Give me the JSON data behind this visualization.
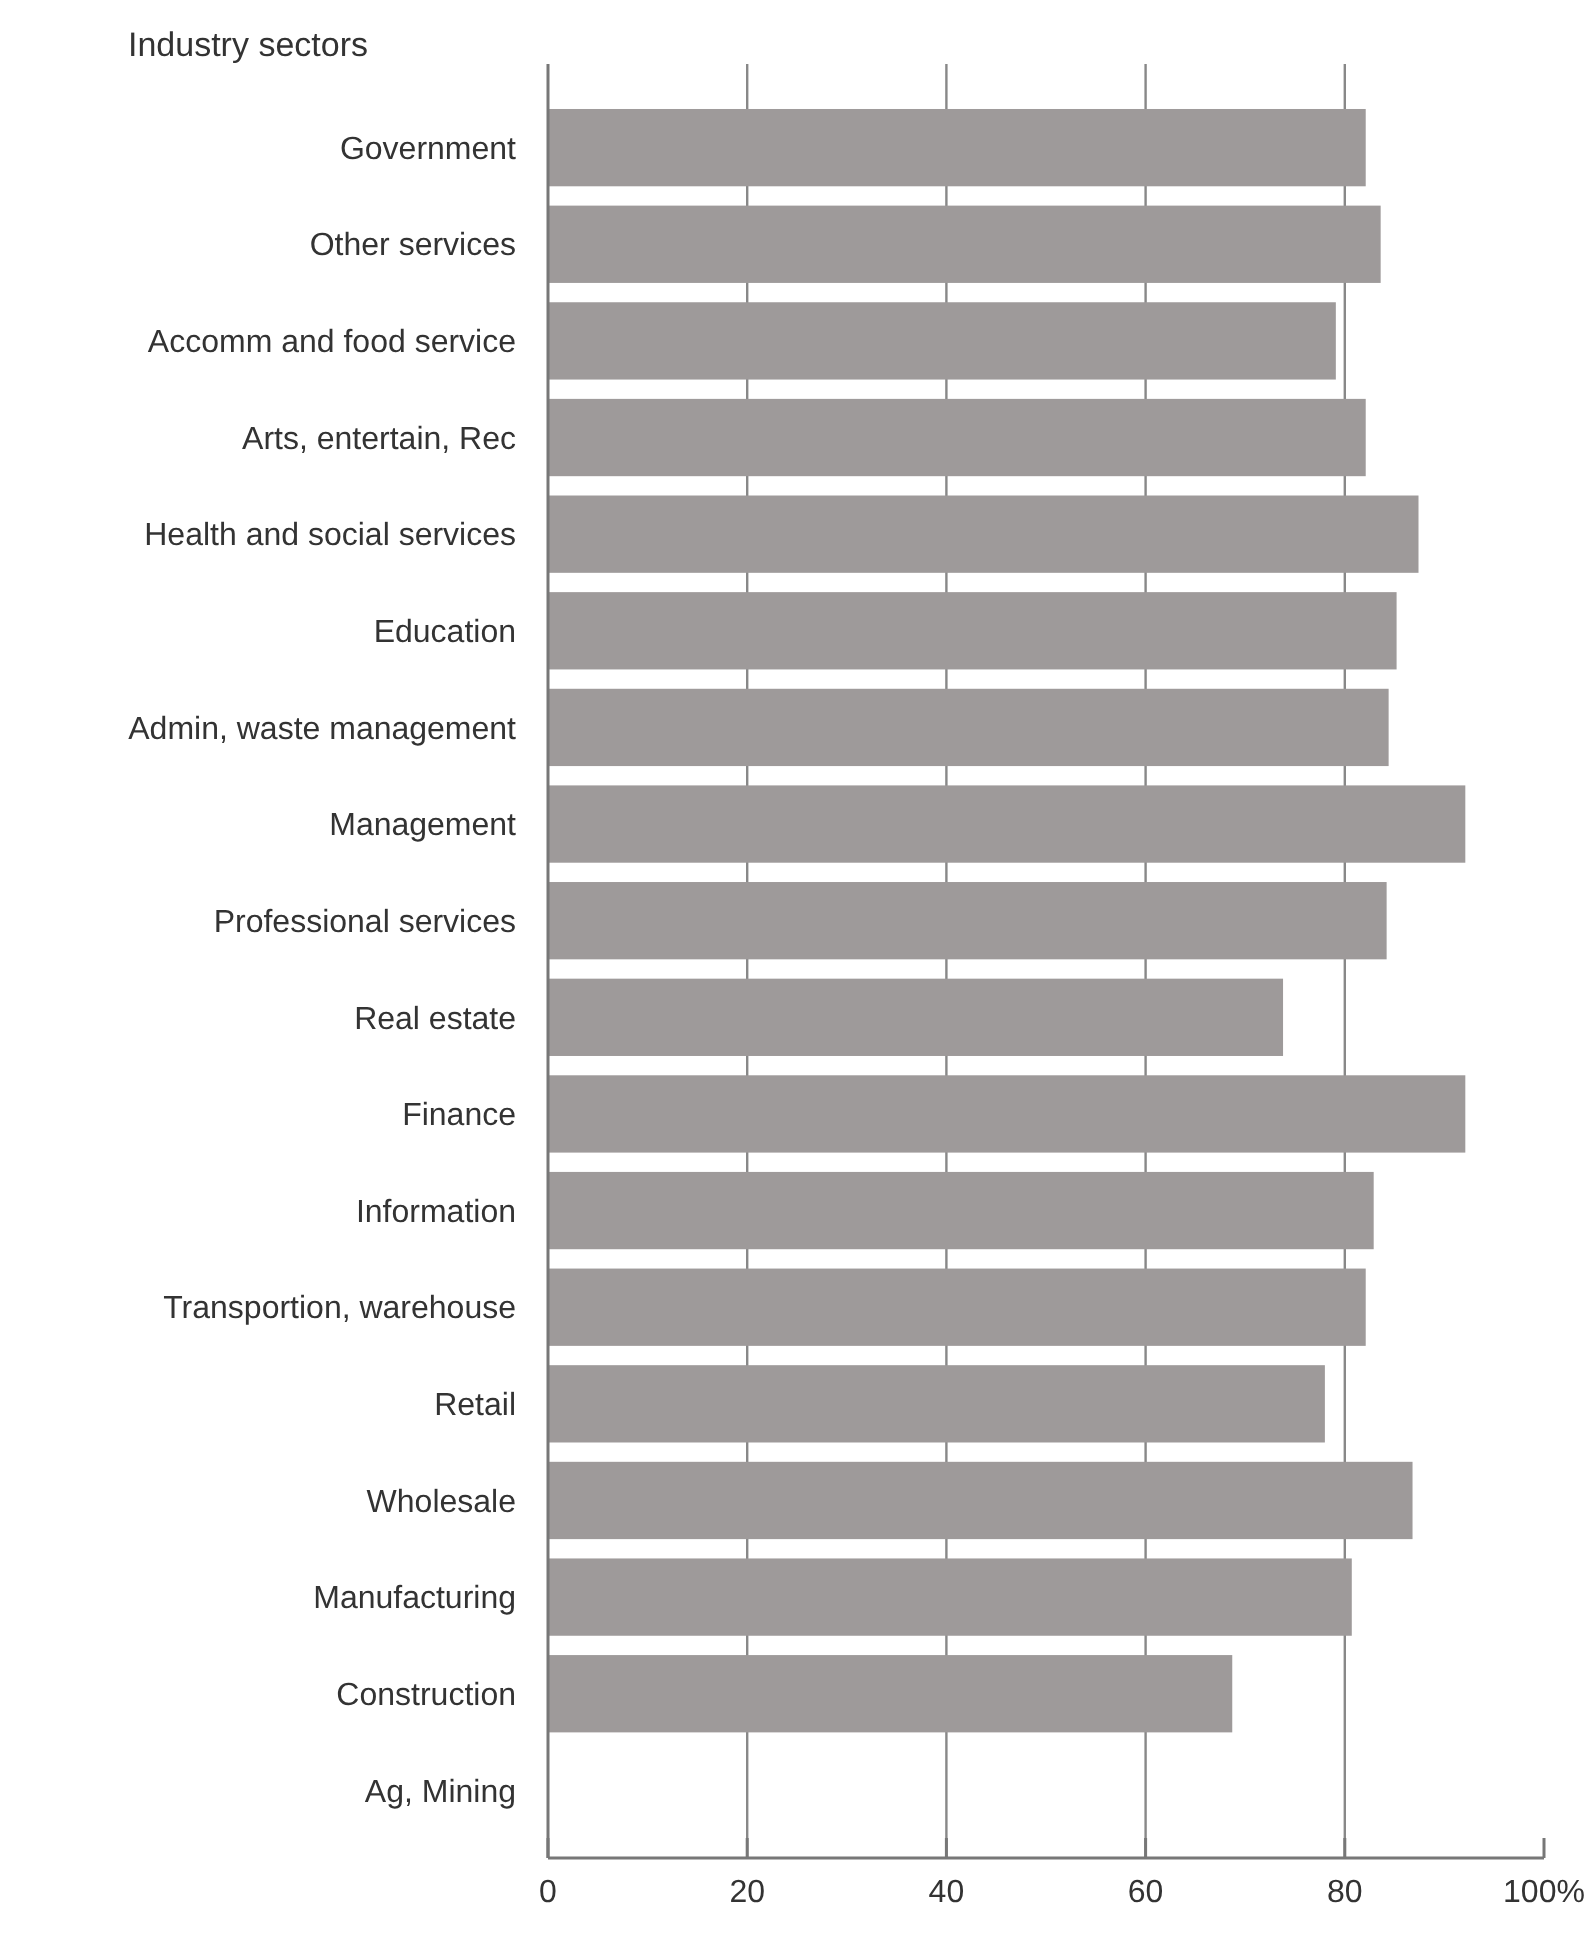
{
  "chart_data": {
    "type": "bar",
    "orientation": "horizontal",
    "ylabel": "Industry sectors",
    "categories": [
      "Government",
      "Other services",
      "Accomm and food service",
      "Arts, entertain, Rec",
      "Health and social services",
      "Education",
      "Admin, waste management",
      "Management",
      "Professional services",
      "Real estate",
      "Finance",
      "Information",
      "Transportion, warehouse",
      "Retail",
      "Wholesale",
      "Manufacturing",
      "Construction",
      "Ag, Mining"
    ],
    "values": [
      82.1,
      83.6,
      79.1,
      82.1,
      87.4,
      85.2,
      84.4,
      92.1,
      84.2,
      73.8,
      92.1,
      82.9,
      82.1,
      78.0,
      86.8,
      80.7,
      68.7,
      null
    ],
    "color": "#9e9a9a",
    "xlim": [
      0,
      100
    ],
    "xticks": [
      0,
      20,
      40,
      60,
      80,
      {
        "value": 100,
        "label": "100%"
      }
    ],
    "grid": "x"
  }
}
